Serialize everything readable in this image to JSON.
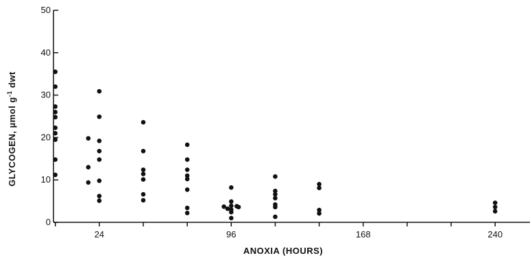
{
  "chart_data": {
    "type": "scatter",
    "title": "",
    "xlabel": "ANOXIA (HOURS)",
    "ylabel_main": "GLYCOGEN, µmol g",
    "ylabel_sup": "-1",
    "ylabel_tail": " dwt",
    "xlim": [
      -1,
      259
    ],
    "ylim": [
      0,
      50
    ],
    "x_tick_labels": [
      {
        "value": 24,
        "label": "24"
      },
      {
        "value": 96,
        "label": "96"
      },
      {
        "value": 168,
        "label": "168"
      },
      {
        "value": 240,
        "label": "240"
      }
    ],
    "x_minor_ticks": [
      0,
      48,
      72,
      120,
      144,
      192,
      216
    ],
    "y_ticks": [
      {
        "value": 0,
        "label": "0"
      },
      {
        "value": 10,
        "label": "10"
      },
      {
        "value": 20,
        "label": "20"
      },
      {
        "value": 30,
        "label": "30"
      },
      {
        "value": 40,
        "label": "40"
      },
      {
        "value": 50,
        "label": "50"
      }
    ],
    "grid": false,
    "points": [
      {
        "x": 0,
        "y": 35.5
      },
      {
        "x": 0,
        "y": 32
      },
      {
        "x": 0,
        "y": 27.3
      },
      {
        "x": 0,
        "y": 26
      },
      {
        "x": 0,
        "y": 24.8
      },
      {
        "x": 0,
        "y": 22.3
      },
      {
        "x": 0,
        "y": 21
      },
      {
        "x": 0,
        "y": 19.5
      },
      {
        "x": 0,
        "y": 14.8
      },
      {
        "x": 0,
        "y": 11.2
      },
      {
        "x": 18,
        "y": 19.8
      },
      {
        "x": 18,
        "y": 13
      },
      {
        "x": 18,
        "y": 9.4
      },
      {
        "x": 24,
        "y": 30.9
      },
      {
        "x": 24,
        "y": 24.9
      },
      {
        "x": 24,
        "y": 19.2
      },
      {
        "x": 24,
        "y": 16.8
      },
      {
        "x": 24,
        "y": 14.8
      },
      {
        "x": 24,
        "y": 9.8
      },
      {
        "x": 24,
        "y": 6.2
      },
      {
        "x": 24,
        "y": 5.1
      },
      {
        "x": 48,
        "y": 23.6
      },
      {
        "x": 48,
        "y": 16.8
      },
      {
        "x": 48,
        "y": 12.4
      },
      {
        "x": 48,
        "y": 11.4
      },
      {
        "x": 48,
        "y": 10.1
      },
      {
        "x": 48,
        "y": 6.6
      },
      {
        "x": 48,
        "y": 5.2
      },
      {
        "x": 72,
        "y": 18.3
      },
      {
        "x": 72,
        "y": 14.8
      },
      {
        "x": 72,
        "y": 12.4
      },
      {
        "x": 72,
        "y": 11
      },
      {
        "x": 72,
        "y": 10.2
      },
      {
        "x": 72,
        "y": 7.7
      },
      {
        "x": 72,
        "y": 3.4
      },
      {
        "x": 72,
        "y": 2.2
      },
      {
        "x": 92,
        "y": 3.7
      },
      {
        "x": 94,
        "y": 3.2
      },
      {
        "x": 96,
        "y": 8.2
      },
      {
        "x": 96,
        "y": 4.9
      },
      {
        "x": 96,
        "y": 3.9
      },
      {
        "x": 96,
        "y": 3
      },
      {
        "x": 96,
        "y": 2.4
      },
      {
        "x": 96,
        "y": 1
      },
      {
        "x": 99,
        "y": 3.8
      },
      {
        "x": 100,
        "y": 3.6
      },
      {
        "x": 120,
        "y": 10.8
      },
      {
        "x": 120,
        "y": 7.4
      },
      {
        "x": 120,
        "y": 6.6
      },
      {
        "x": 120,
        "y": 5.7
      },
      {
        "x": 120,
        "y": 4.2
      },
      {
        "x": 120,
        "y": 3.6
      },
      {
        "x": 120,
        "y": 1.3
      },
      {
        "x": 144,
        "y": 9
      },
      {
        "x": 144,
        "y": 8.1
      },
      {
        "x": 144,
        "y": 2.9
      },
      {
        "x": 144,
        "y": 2.1
      },
      {
        "x": 240,
        "y": 4.6
      },
      {
        "x": 240,
        "y": 3.6
      },
      {
        "x": 240,
        "y": 2.6
      }
    ]
  }
}
